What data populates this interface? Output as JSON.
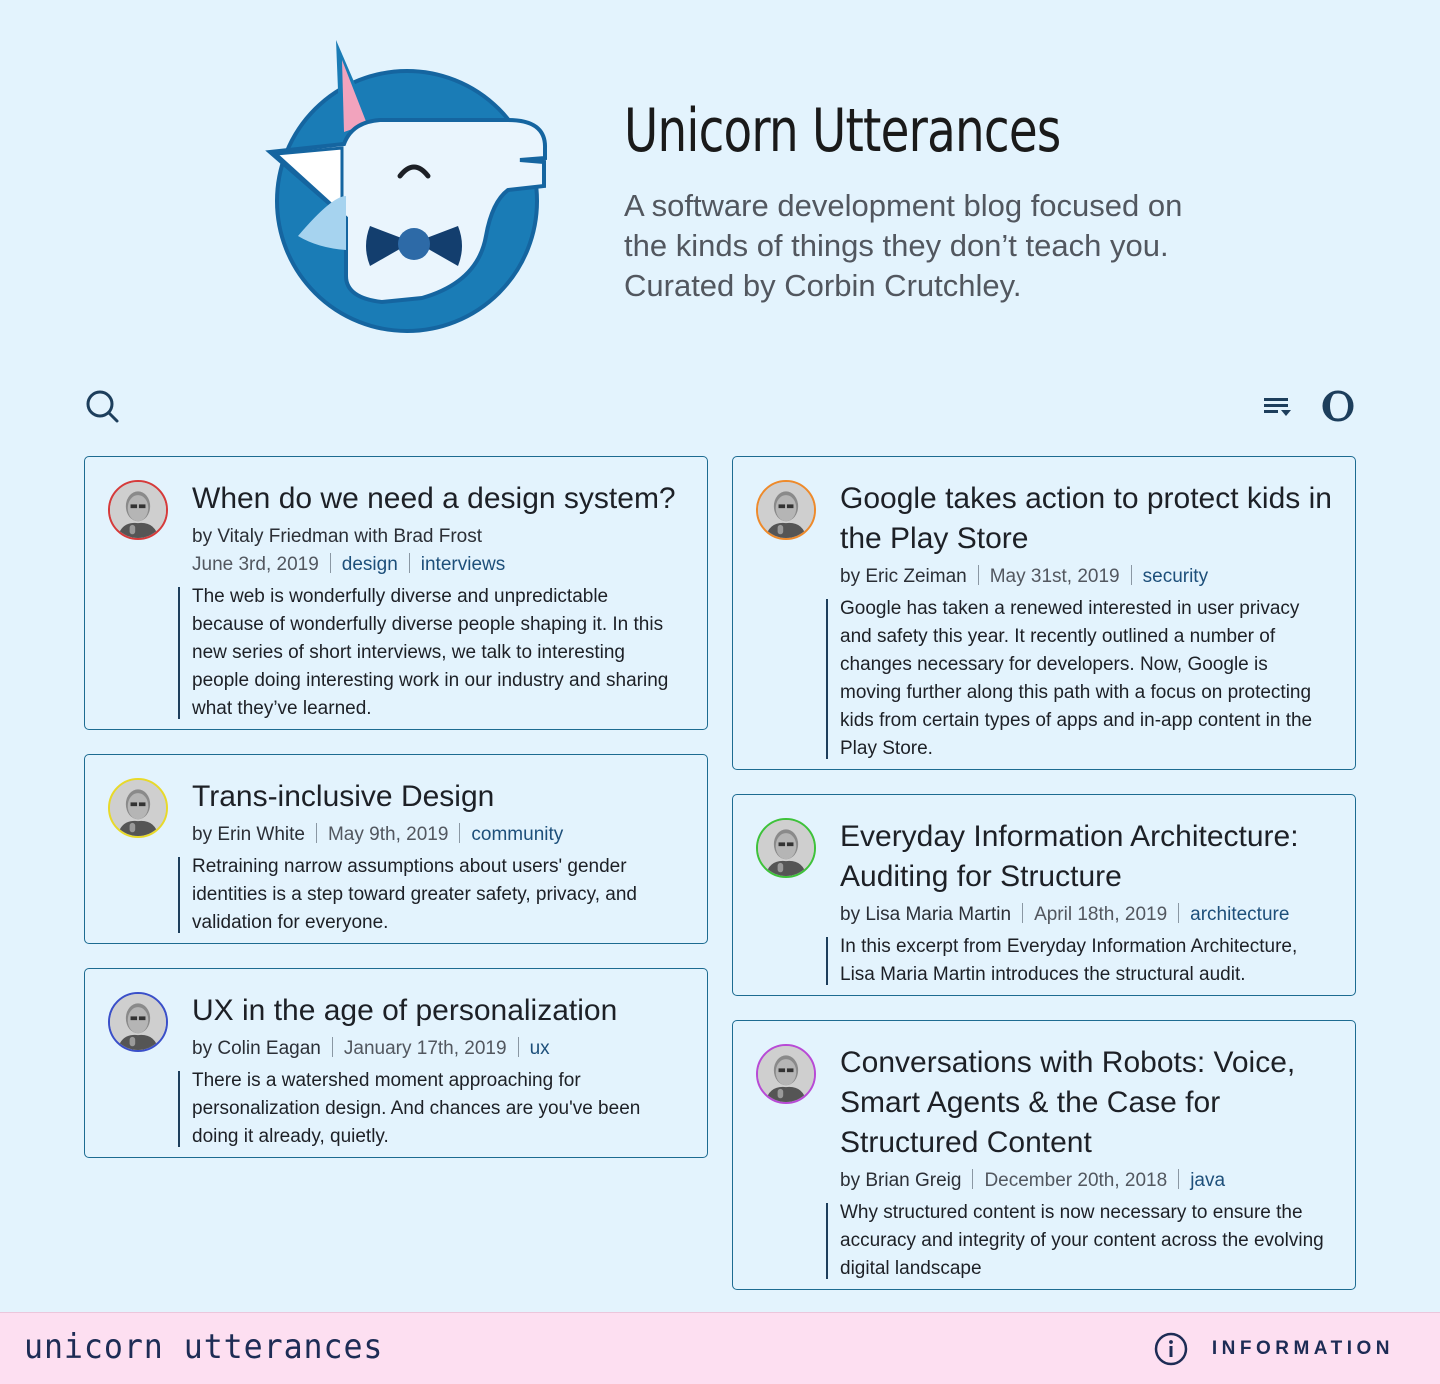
{
  "site": {
    "title": "Unicorn Utterances",
    "description": "A software development blog focused on the kinds of things they don’t teach you. Curated by Corbin Crutchley."
  },
  "toolbar": {
    "search_icon": "search-icon",
    "sort_icon": "sort-icon",
    "theme_icon": "dark-mode-icon"
  },
  "posts_left": [
    {
      "title": "When do we need a design system?",
      "authors": "by Vitaly Friedman with Brad Frost",
      "date": "June 3rd, 2019",
      "tags": [
        "design",
        "interviews"
      ],
      "excerpt": "The web is wonderfully diverse and unpredictable because of wonderfully diverse people shaping it. In this new series of short interviews, we talk to interesting people doing interesting work in our industry and sharing what they’ve learned.",
      "avatar_color": "#d63a3a"
    },
    {
      "title": "Trans-inclusive Design",
      "authors": "by Erin White",
      "date": "May 9th, 2019",
      "tags": [
        "community"
      ],
      "excerpt": "Retraining narrow assumptions about users' gender identities is a step toward greater safety, privacy, and validation for everyone.",
      "avatar_color": "#e8d92a"
    },
    {
      "title": "UX in the age of personalization",
      "authors": "by Colin Eagan",
      "date": "January 17th, 2019",
      "tags": [
        "ux"
      ],
      "excerpt": "There is a watershed moment approaching for personalization design. And chances are you've been doing it already, quietly.",
      "avatar_color": "#3a4fc9"
    }
  ],
  "posts_right": [
    {
      "title": "Google takes action to protect kids in the Play Store",
      "authors": "by Eric Zeiman",
      "date": "May 31st, 2019",
      "tags": [
        "security"
      ],
      "excerpt": "Google has taken a renewed interested in user privacy and safety this year. It recently outlined a number of changes necessary for developers. Now, Google is moving further along this path with a focus on protecting kids from certain types of apps and in-app content in the Play Store.",
      "avatar_color": "#ee8a2b"
    },
    {
      "title": "Everyday Information Architecture: Auditing for Structure",
      "authors": "by Lisa Maria Martin",
      "date": "April 18th, 2019",
      "tags": [
        "architecture"
      ],
      "excerpt": "In this excerpt from Everyday Information Architecture, Lisa Maria Martin introduces the structural audit.",
      "avatar_color": "#3ec23a"
    },
    {
      "title": "Conversations with Robots: Voice, Smart Agents & the Case for Structured Content",
      "authors": "by Brian Greig",
      "date": "December 20th, 2018",
      "tags": [
        "java"
      ],
      "excerpt": "Why structured content is now necessary to ensure the accuracy and integrity of your content across the evolving digital landscape",
      "avatar_color": "#b84ad6"
    }
  ],
  "footer": {
    "brand": "unicorn utterances",
    "info_label": "INFORMATION",
    "info_icon": "info-icon"
  }
}
